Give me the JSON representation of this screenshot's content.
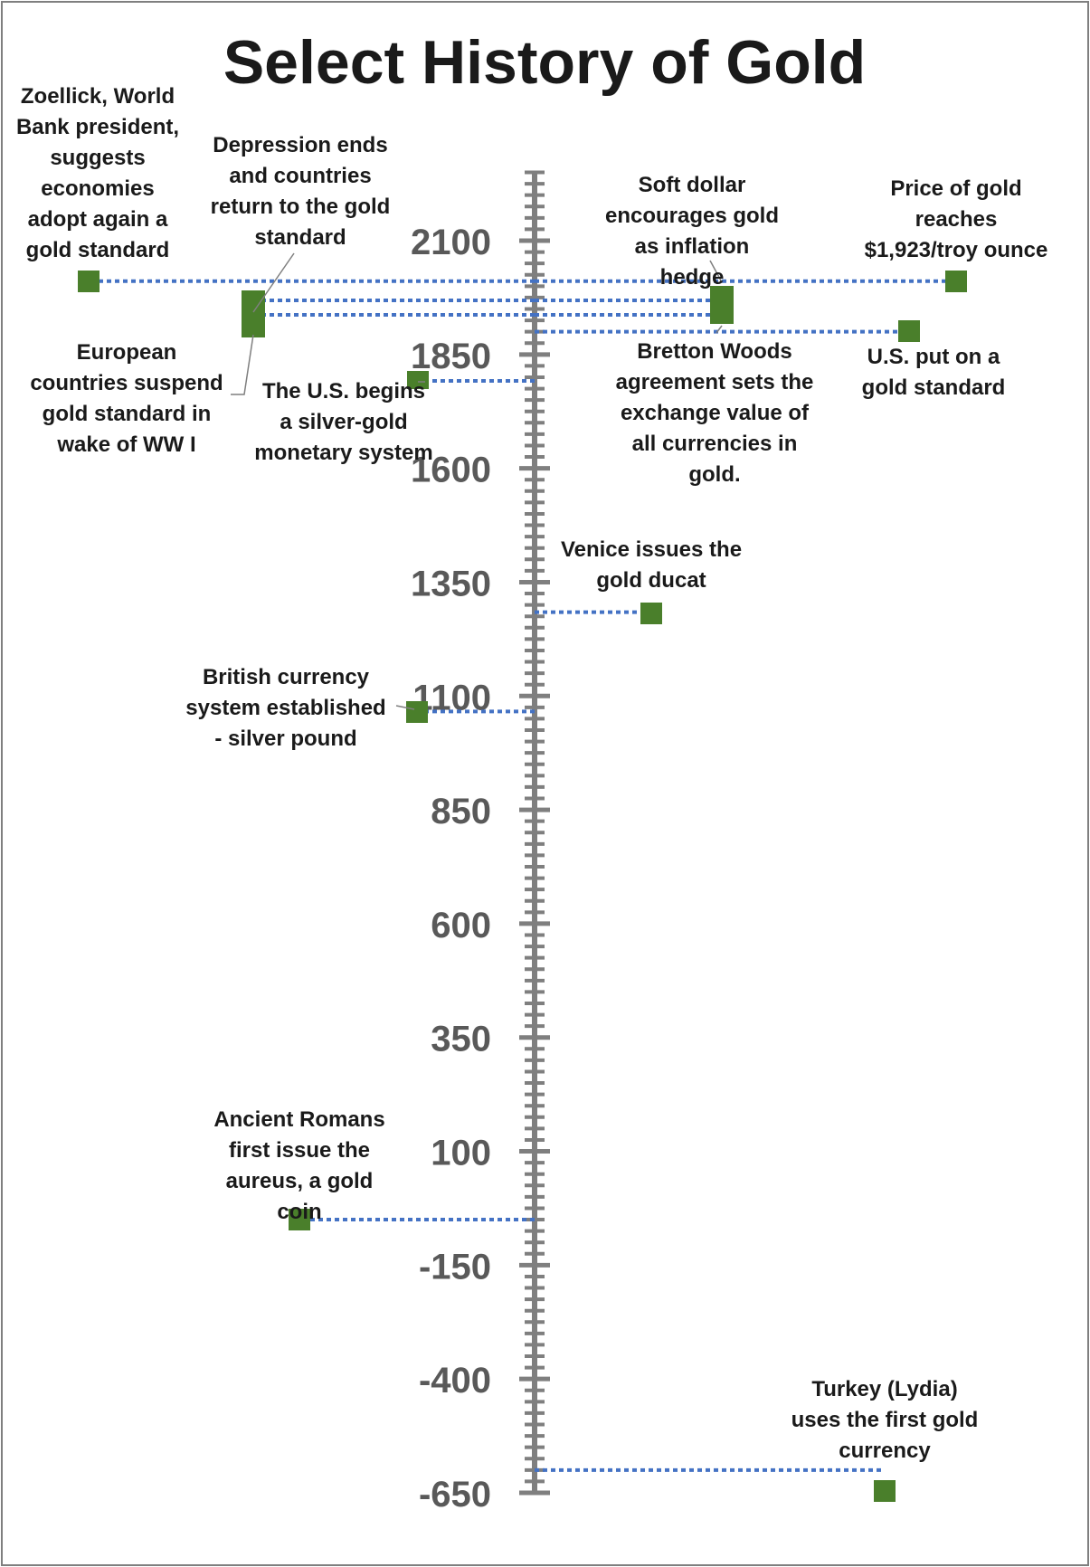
{
  "chart_data": {
    "type": "scatter",
    "title": "Select History of Gold",
    "axis": {
      "orientation": "vertical",
      "range": [
        -650,
        2250
      ],
      "tick_values": [
        -650,
        -400,
        -150,
        100,
        350,
        600,
        850,
        1100,
        1350,
        1600,
        1850,
        2100
      ],
      "tick_labels": [
        "-650",
        "-400",
        "-150",
        "100",
        "350",
        "600",
        "850",
        "1100",
        "1350",
        "1600",
        "1850",
        "2100"
      ],
      "minor_step": 25
    },
    "marker_color": "#4a7f2b",
    "connector_color": "#4472c4",
    "events": [
      {
        "year": -600,
        "label": "Turkey (Lydia) uses the first gold currency",
        "side": "right"
      },
      {
        "year": -50,
        "label": "Ancient Romans first issue the aureus, a gold coin",
        "side": "left"
      },
      {
        "year": 1066,
        "label": "British currency system established - silver pound",
        "side": "left"
      },
      {
        "year": 1284,
        "label": "Venice issues the gold ducat",
        "side": "right"
      },
      {
        "year": 1792,
        "label": "The U.S. begins a silver-gold monetary system",
        "side": "left"
      },
      {
        "year": 1900,
        "label": "U.S. put on a gold standard",
        "side": "right"
      },
      {
        "year": 1914,
        "label": "European countries suspend gold standard in wake of WW I",
        "side": "left"
      },
      {
        "year": 1944,
        "label": "Bretton Woods agreement sets the exchange value of all currencies in gold.",
        "side": "right"
      },
      {
        "year": 1944,
        "label": "Depression ends and countries return to the gold standard",
        "side": "left"
      },
      {
        "year": 1970,
        "label": "Soft dollar encourages gold as inflation hedge",
        "side": "right"
      },
      {
        "year": 2011,
        "label": "Price of gold reaches $1,923/troy ounce",
        "side": "right"
      },
      {
        "year": 2011,
        "label": "Zoellick, World Bank president, suggests economies adopt again a gold standard",
        "side": "left"
      }
    ]
  }
}
